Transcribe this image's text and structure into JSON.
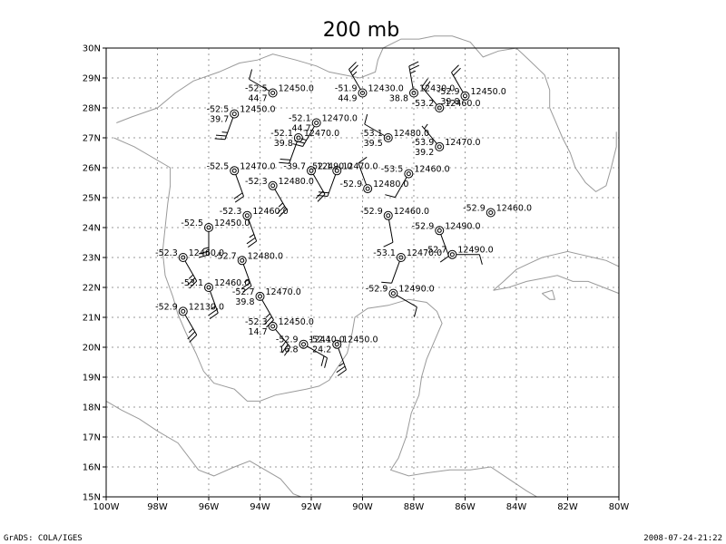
{
  "title": "200 mb",
  "footer_left": "GrADS: COLA/IGES",
  "footer_right": "2008-07-24-21:22",
  "colors": {
    "coast": "#9a9a9a",
    "grid": "#9a9a9a",
    "ink": "#000000"
  },
  "axes": {
    "lon_range": [
      -100,
      -80
    ],
    "lat_range": [
      15,
      30
    ],
    "lon_ticks": [
      {
        "v": -100,
        "t": "100W"
      },
      {
        "v": -98,
        "t": "98W"
      },
      {
        "v": -96,
        "t": "96W"
      },
      {
        "v": -94,
        "t": "94W"
      },
      {
        "v": -92,
        "t": "92W"
      },
      {
        "v": -90,
        "t": "90W"
      },
      {
        "v": -88,
        "t": "88W"
      },
      {
        "v": -86,
        "t": "86W"
      },
      {
        "v": -84,
        "t": "84W"
      },
      {
        "v": -82,
        "t": "82W"
      },
      {
        "v": -80,
        "t": "80W"
      }
    ],
    "lat_ticks": [
      {
        "v": 15,
        "t": "15N"
      },
      {
        "v": 16,
        "t": "16N"
      },
      {
        "v": 17,
        "t": "17N"
      },
      {
        "v": 18,
        "t": "18N"
      },
      {
        "v": 19,
        "t": "19N"
      },
      {
        "v": 20,
        "t": "20N"
      },
      {
        "v": 21,
        "t": "21N"
      },
      {
        "v": 22,
        "t": "22N"
      },
      {
        "v": 23,
        "t": "23N"
      },
      {
        "v": 24,
        "t": "24N"
      },
      {
        "v": 25,
        "t": "25N"
      },
      {
        "v": 26,
        "t": "26N"
      },
      {
        "v": 27,
        "t": "27N"
      },
      {
        "v": 28,
        "t": "28N"
      },
      {
        "v": 29,
        "t": "29N"
      },
      {
        "v": 30,
        "t": "30N"
      }
    ]
  },
  "coastlines": [
    [
      [
        -99.6,
        27.5
      ],
      [
        -99.0,
        27.7
      ],
      [
        -98.0,
        28.0
      ],
      [
        -97.3,
        28.5
      ],
      [
        -96.6,
        28.9
      ],
      [
        -95.6,
        29.2
      ],
      [
        -94.8,
        29.5
      ],
      [
        -94.1,
        29.6
      ],
      [
        -93.5,
        29.8
      ],
      [
        -92.6,
        29.6
      ],
      [
        -91.8,
        29.4
      ],
      [
        -91.3,
        29.2
      ],
      [
        -90.7,
        29.1
      ],
      [
        -90.1,
        29.0
      ],
      [
        -89.5,
        29.2
      ],
      [
        -89.4,
        29.6
      ],
      [
        -89.2,
        30.0
      ],
      [
        -88.5,
        30.3
      ],
      [
        -87.8,
        30.3
      ],
      [
        -87.2,
        30.4
      ],
      [
        -86.5,
        30.4
      ],
      [
        -85.8,
        30.2
      ],
      [
        -85.3,
        29.7
      ],
      [
        -84.7,
        29.9
      ],
      [
        -84.0,
        30.0
      ],
      [
        -83.5,
        29.6
      ],
      [
        -82.9,
        29.1
      ],
      [
        -82.7,
        28.6
      ],
      [
        -82.7,
        28.0
      ],
      [
        -82.5,
        27.6
      ],
      [
        -82.2,
        27.0
      ],
      [
        -81.9,
        26.5
      ],
      [
        -81.7,
        26.0
      ],
      [
        -81.3,
        25.5
      ],
      [
        -80.9,
        25.2
      ],
      [
        -80.5,
        25.4
      ],
      [
        -80.3,
        26.0
      ],
      [
        -80.1,
        26.7
      ],
      [
        -80.1,
        27.2
      ]
    ],
    [
      [
        -99.7,
        27.0
      ],
      [
        -98.9,
        26.7
      ],
      [
        -97.5,
        26.0
      ],
      [
        -97.5,
        25.4
      ],
      [
        -97.6,
        24.8
      ],
      [
        -97.7,
        24.0
      ],
      [
        -97.8,
        23.2
      ],
      [
        -97.7,
        22.4
      ],
      [
        -97.4,
        21.7
      ],
      [
        -97.2,
        21.1
      ],
      [
        -96.9,
        20.5
      ],
      [
        -96.5,
        19.8
      ],
      [
        -96.2,
        19.2
      ],
      [
        -95.8,
        18.8
      ],
      [
        -95.0,
        18.6
      ],
      [
        -94.5,
        18.2
      ],
      [
        -94.0,
        18.2
      ],
      [
        -93.4,
        18.4
      ],
      [
        -92.8,
        18.5
      ],
      [
        -92.2,
        18.6
      ],
      [
        -91.7,
        18.7
      ],
      [
        -91.3,
        18.9
      ],
      [
        -91.0,
        19.3
      ],
      [
        -90.6,
        19.8
      ],
      [
        -90.4,
        20.5
      ],
      [
        -90.3,
        21.0
      ],
      [
        -89.8,
        21.3
      ],
      [
        -89.0,
        21.4
      ],
      [
        -88.2,
        21.6
      ],
      [
        -87.5,
        21.5
      ],
      [
        -87.1,
        21.2
      ],
      [
        -86.9,
        20.8
      ],
      [
        -87.2,
        20.2
      ],
      [
        -87.5,
        19.6
      ],
      [
        -87.7,
        19.0
      ],
      [
        -87.8,
        18.4
      ],
      [
        -88.1,
        17.8
      ],
      [
        -88.3,
        17.0
      ],
      [
        -88.6,
        16.3
      ],
      [
        -88.9,
        15.9
      ],
      [
        -88.2,
        15.7
      ],
      [
        -87.5,
        15.8
      ],
      [
        -86.6,
        15.9
      ],
      [
        -85.8,
        15.9
      ],
      [
        -85.0,
        16.0
      ],
      [
        -84.3,
        15.6
      ],
      [
        -83.6,
        15.2
      ],
      [
        -83.2,
        15.0
      ]
    ],
    [
      [
        -100,
        18.2
      ],
      [
        -99.4,
        17.9
      ],
      [
        -98.7,
        17.6
      ],
      [
        -98.0,
        17.2
      ],
      [
        -97.2,
        16.8
      ],
      [
        -96.4,
        15.9
      ],
      [
        -95.8,
        15.7
      ],
      [
        -95.0,
        16.0
      ],
      [
        -94.4,
        16.2
      ],
      [
        -93.8,
        15.9
      ],
      [
        -93.2,
        15.6
      ],
      [
        -92.7,
        15.1
      ],
      [
        -92.4,
        15.0
      ]
    ],
    [
      [
        -84.9,
        21.9
      ],
      [
        -84.5,
        22.2
      ],
      [
        -84.0,
        22.6
      ],
      [
        -83.5,
        22.8
      ],
      [
        -83.0,
        23.0
      ],
      [
        -82.5,
        23.1
      ],
      [
        -82.0,
        23.2
      ],
      [
        -81.5,
        23.1
      ],
      [
        -81.0,
        23.0
      ],
      [
        -80.5,
        22.9
      ],
      [
        -80.0,
        22.7
      ]
    ],
    [
      [
        -84.9,
        21.9
      ],
      [
        -84.3,
        22.0
      ],
      [
        -83.6,
        22.2
      ],
      [
        -83.0,
        22.3
      ],
      [
        -82.4,
        22.4
      ],
      [
        -81.8,
        22.2
      ],
      [
        -81.2,
        22.2
      ],
      [
        -80.6,
        22.0
      ],
      [
        -80.0,
        21.8
      ]
    ],
    [
      [
        -83.0,
        21.8
      ],
      [
        -82.7,
        21.6
      ],
      [
        -82.5,
        21.6
      ],
      [
        -82.6,
        21.9
      ],
      [
        -83.0,
        21.8
      ]
    ]
  ],
  "stations": [
    {
      "lon": -93.5,
      "lat": 28.5,
      "t": "-52.5",
      "z": "12450.0",
      "td": "44.7",
      "ddd": 300,
      "kt": 10
    },
    {
      "lon": -90.0,
      "lat": 28.5,
      "t": "-51.9",
      "z": "12430.0",
      "td": "44.9",
      "ddd": 330,
      "kt": 25
    },
    {
      "lon": -88.0,
      "lat": 28.5,
      "t": "",
      "z": "12430.0",
      "td": "38.8",
      "ddd": 350,
      "kt": 25
    },
    {
      "lon": -86.0,
      "lat": 28.4,
      "t": "-52.9",
      "z": "12450.0",
      "td": "39.8",
      "ddd": 330,
      "kt": 20
    },
    {
      "lon": -87.0,
      "lat": 28.0,
      "t": "-53.2",
      "z": "12460.0",
      "td": "",
      "ddd": 320,
      "kt": 20
    },
    {
      "lon": -95.0,
      "lat": 27.8,
      "t": "-52.5",
      "z": "12450.0",
      "td": "39.7",
      "ddd": 200,
      "kt": 25
    },
    {
      "lon": -91.8,
      "lat": 27.5,
      "t": "-52.1",
      "z": "12470.0",
      "td": "44.7",
      "ddd": 210,
      "kt": 25
    },
    {
      "lon": -92.5,
      "lat": 27.0,
      "t": "-52.1",
      "z": "12470.0",
      "td": "39.8",
      "ddd": 200,
      "kt": 20
    },
    {
      "lon": -89.0,
      "lat": 27.0,
      "t": "-53.1",
      "z": "12480.0",
      "td": "39.5",
      "ddd": 300,
      "kt": 10
    },
    {
      "lon": -87.0,
      "lat": 26.7,
      "t": "-53.9",
      "z": "12470.0",
      "td": "39.2",
      "ddd": 320,
      "kt": 5
    },
    {
      "lon": -95.0,
      "lat": 25.9,
      "t": "-52.5",
      "z": "12470.0",
      "td": "",
      "ddd": 160,
      "kt": 20
    },
    {
      "lon": -92.0,
      "lat": 25.9,
      "t": "-39.7",
      "z": "12490.0",
      "td": "",
      "ddd": 150,
      "kt": 20
    },
    {
      "lon": -91.0,
      "lat": 25.9,
      "t": "-52.1",
      "z": "12470.0",
      "td": "",
      "ddd": 200,
      "kt": 20
    },
    {
      "lon": -88.2,
      "lat": 25.8,
      "t": "-53.5",
      "z": "12460.0",
      "td": "",
      "ddd": 210,
      "kt": 10
    },
    {
      "lon": -93.5,
      "lat": 25.4,
      "t": "-52.3",
      "z": "12480.0",
      "td": "",
      "ddd": 150,
      "kt": 25
    },
    {
      "lon": -89.8,
      "lat": 25.3,
      "t": "-52.9",
      "z": "12480.0",
      "td": "",
      "ddd": 340,
      "kt": 10
    },
    {
      "lon": -94.5,
      "lat": 24.4,
      "t": "-52.3",
      "z": "12460.0",
      "td": "",
      "ddd": 160,
      "kt": 25
    },
    {
      "lon": -89.0,
      "lat": 24.4,
      "t": "-52.9",
      "z": "12460.0",
      "td": "",
      "ddd": 170,
      "kt": 10
    },
    {
      "lon": -85.0,
      "lat": 24.5,
      "t": "-52.9",
      "z": "12460.0",
      "td": "",
      "ddd": 0,
      "kt": 0
    },
    {
      "lon": -96.0,
      "lat": 24.0,
      "t": "-52.5",
      "z": "12450.0",
      "td": "",
      "ddd": 180,
      "kt": 25
    },
    {
      "lon": -87.0,
      "lat": 23.9,
      "t": "-52.9",
      "z": "12490.0",
      "td": "",
      "ddd": 160,
      "kt": 10
    },
    {
      "lon": -97.0,
      "lat": 23.0,
      "t": "-52.3",
      "z": "12460.0",
      "td": "",
      "ddd": 150,
      "kt": 25
    },
    {
      "lon": -94.7,
      "lat": 22.9,
      "t": "-52.7",
      "z": "12480.0",
      "td": "",
      "ddd": 160,
      "kt": 25
    },
    {
      "lon": -88.5,
      "lat": 23.0,
      "t": "-53.1",
      "z": "12470.0",
      "td": "",
      "ddd": 200,
      "kt": 10
    },
    {
      "lon": -86.5,
      "lat": 23.1,
      "t": "-52.7",
      "z": "12490.0",
      "td": "",
      "ddd": 90,
      "kt": 10
    },
    {
      "lon": -96.0,
      "lat": 22.0,
      "t": "-53.1",
      "z": "12460.0",
      "td": "",
      "ddd": 160,
      "kt": 25
    },
    {
      "lon": -94.0,
      "lat": 21.7,
      "t": "-52.7",
      "z": "12470.0",
      "td": "39.8",
      "ddd": 150,
      "kt": 25
    },
    {
      "lon": -88.8,
      "lat": 21.8,
      "t": "-52.9",
      "z": "12490.0",
      "td": "",
      "ddd": 120,
      "kt": 10
    },
    {
      "lon": -97.0,
      "lat": 21.2,
      "t": "-52.9",
      "z": "12130.0",
      "td": "",
      "ddd": 150,
      "kt": 25
    },
    {
      "lon": -93.5,
      "lat": 20.7,
      "t": "-52.3",
      "z": "12450.0",
      "td": "14.7",
      "ddd": 140,
      "kt": 25
    },
    {
      "lon": -92.3,
      "lat": 20.1,
      "t": "-52.9",
      "z": "12440.0",
      "td": "16.8",
      "ddd": 120,
      "kt": 20
    },
    {
      "lon": -91.0,
      "lat": 20.1,
      "t": "-52.1",
      "z": "12450.0",
      "td": "24.2",
      "ddd": 160,
      "kt": 25
    }
  ]
}
